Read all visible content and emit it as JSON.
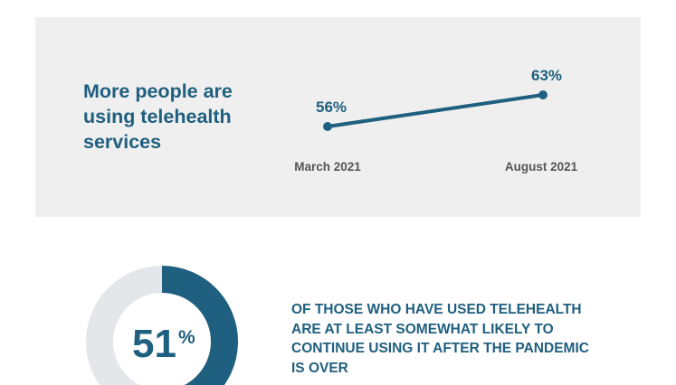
{
  "colors": {
    "accent": "#1f5f7f",
    "panel": "#efefef",
    "donut_track": "#e4e6ea",
    "axis_label": "#555555"
  },
  "chart_data": [
    {
      "type": "line",
      "title": "More people are using telehealth services",
      "categories": [
        "March 2021",
        "August 2021"
      ],
      "values": [
        56,
        63
      ],
      "value_labels": [
        "56%",
        "63%"
      ],
      "unit": "%"
    },
    {
      "type": "pie",
      "variant": "donut",
      "value": 51,
      "value_text": "51",
      "unit": "%",
      "caption": "OF THOSE WHO HAVE USED TELEHEALTH ARE AT LEAST SOMEWHAT LIKELY TO CONTINUE USING IT AFTER THE PANDEMIC IS OVER"
    }
  ]
}
